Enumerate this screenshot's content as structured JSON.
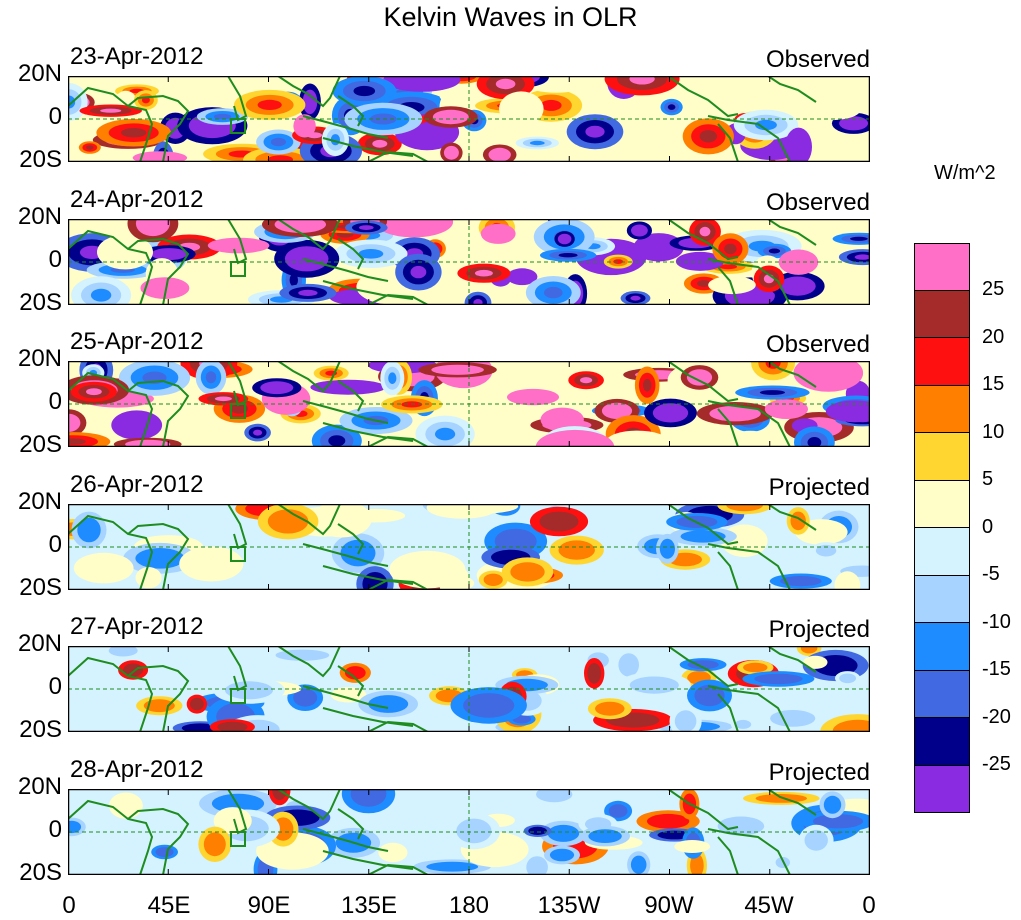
{
  "title": "Kelvin Waves in OLR",
  "panels": [
    {
      "date": "23-Apr-2012",
      "status": "Observed"
    },
    {
      "date": "24-Apr-2012",
      "status": "Observed"
    },
    {
      "date": "25-Apr-2012",
      "status": "Observed"
    },
    {
      "date": "26-Apr-2012",
      "status": "Projected"
    },
    {
      "date": "27-Apr-2012",
      "status": "Projected"
    },
    {
      "date": "28-Apr-2012",
      "status": "Projected"
    }
  ],
  "lat_labels": [
    "20N",
    "0",
    "20S"
  ],
  "lon_labels": [
    "0",
    "45E",
    "90E",
    "135E",
    "180",
    "135W",
    "90W",
    "45W",
    "0"
  ],
  "colorbar": {
    "unit": "W/m^2",
    "colors": [
      "#ff6ec7",
      "#a52a2a",
      "#ff1010",
      "#ff7f00",
      "#ffd530",
      "#fffdc8",
      "#d4f3ff",
      "#a6d3ff",
      "#1e8cff",
      "#4169e1",
      "#00008b",
      "#8a2be2"
    ],
    "labels": [
      "25",
      "20",
      "15",
      "10",
      "5",
      "0",
      "-5",
      "-10",
      "-15",
      "-20",
      "-25"
    ]
  },
  "colors": {
    "land_outline": "#1e8c1e",
    "equator_line": "#1e8c1e"
  }
}
